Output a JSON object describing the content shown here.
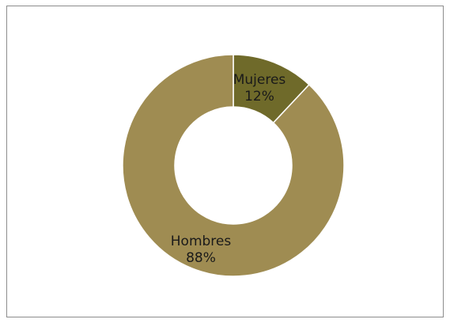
{
  "chart_data": {
    "type": "pie",
    "variant": "donut",
    "title": "",
    "slices": [
      {
        "label": "Mujeres",
        "value": 12,
        "display": "12%",
        "color": "#6f6a2a"
      },
      {
        "label": "Hombres",
        "value": 88,
        "display": "88%",
        "color": "#9f8c52"
      }
    ],
    "legend": "none",
    "start_angle_deg": 0,
    "direction": "clockwise",
    "border_color": "#8c8c8c",
    "slice_edge_color": "#ffffff"
  }
}
